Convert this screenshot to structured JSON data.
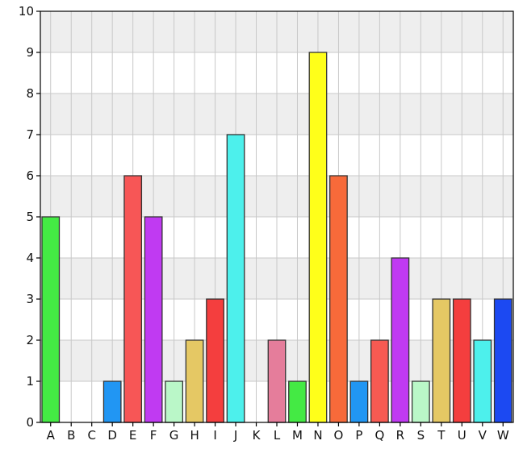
{
  "chart_data": {
    "type": "bar",
    "title": "",
    "xlabel": "",
    "ylabel": "",
    "categories": [
      "A",
      "B",
      "C",
      "D",
      "E",
      "F",
      "G",
      "H",
      "I",
      "J",
      "K",
      "L",
      "M",
      "N",
      "O",
      "P",
      "Q",
      "R",
      "S",
      "T",
      "U",
      "V",
      "W"
    ],
    "values": [
      5,
      0,
      0,
      1,
      6,
      5,
      1,
      2,
      3,
      7,
      0,
      2,
      1,
      9,
      6,
      1,
      2,
      4,
      1,
      3,
      3,
      2,
      3
    ],
    "colors": [
      "#44ea44",
      "#ffffff",
      "#ffffff",
      "#2196f3",
      "#f75656",
      "#c03af2",
      "#baf7c8",
      "#e5c864",
      "#f43e3e",
      "#4df0ec",
      "#ffffff",
      "#e57d9b",
      "#44ea44",
      "#ffff1a",
      "#f76a3a",
      "#2196f3",
      "#f75a52",
      "#c03af2",
      "#baf7c8",
      "#e5c864",
      "#f43e3e",
      "#4df0ec",
      "#1c49f2"
    ],
    "ylim": [
      0,
      10
    ],
    "yticks": [
      0,
      1,
      2,
      3,
      4,
      5,
      6,
      7,
      8,
      9,
      10
    ],
    "grid": true,
    "legend": "none"
  }
}
